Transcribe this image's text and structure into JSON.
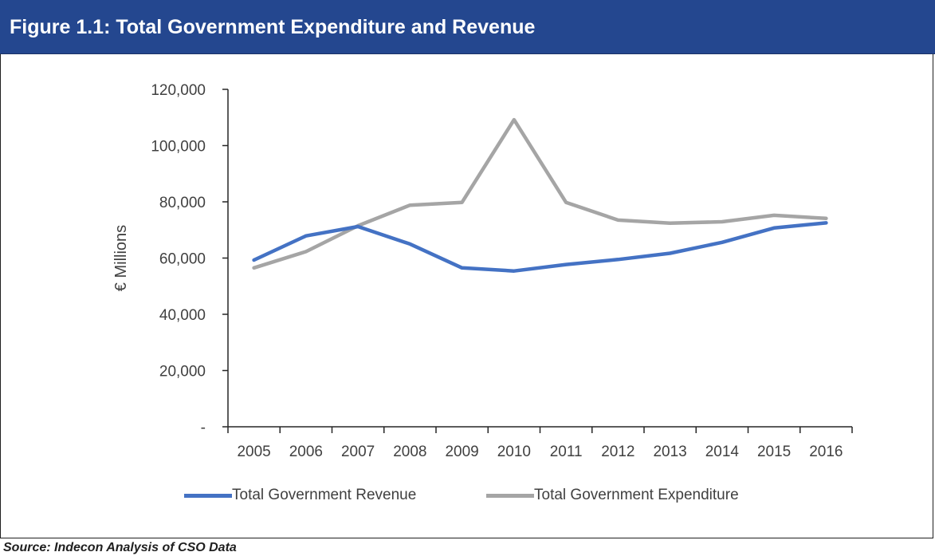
{
  "header": {
    "title": "Figure 1.1: Total Government Expenditure and Revenue"
  },
  "source": {
    "text": "Source: Indecon Analysis of CSO Data"
  },
  "chart_data": {
    "type": "line",
    "x": [
      "2005",
      "2006",
      "2007",
      "2008",
      "2009",
      "2010",
      "2011",
      "2012",
      "2013",
      "2014",
      "2015",
      "2016"
    ],
    "ylabel": "€ Millions",
    "xlabel": "",
    "ylim": [
      0,
      120000
    ],
    "yticks": [
      0,
      20000,
      40000,
      60000,
      80000,
      100000,
      120000
    ],
    "ytick_labels": [
      "-",
      "20,000",
      "40,000",
      "60,000",
      "80,000",
      "100,000",
      "120,000"
    ],
    "grid": false,
    "legend_position": "bottom",
    "series": [
      {
        "name": "Total Government Revenue",
        "color": "#4472c4",
        "values": [
          59300,
          67900,
          71200,
          65000,
          56500,
          55400,
          57700,
          59500,
          61700,
          65600,
          70700,
          72500
        ]
      },
      {
        "name": "Total Government Expenditure",
        "color": "#a5a5a5",
        "values": [
          56500,
          62300,
          71500,
          78800,
          79800,
          109200,
          79800,
          73500,
          72400,
          72900,
          75200,
          74100
        ]
      }
    ]
  }
}
